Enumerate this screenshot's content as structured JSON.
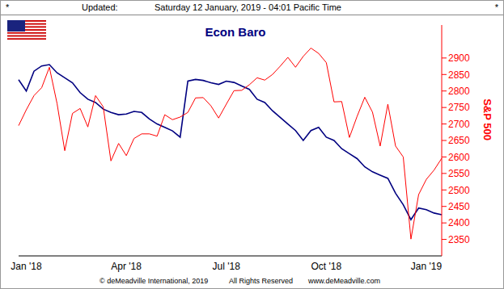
{
  "chart_data": {
    "type": "line",
    "title": "Econ Baro",
    "header": [
      "*",
      "Updated:",
      "Saturday 12 January, 2019 - 04:01 Pacific Time",
      "*"
    ],
    "footer": [
      "© deMeadville International, 2019",
      "All Rights Reserved",
      "www.deMeadville.com"
    ],
    "y_label": "S&P 500",
    "categories": [
      null,
      "Jan '18",
      null,
      null,
      null,
      null,
      null,
      null,
      null,
      null,
      null,
      null,
      null,
      null,
      "Apr '18",
      null,
      null,
      null,
      null,
      null,
      null,
      null,
      null,
      null,
      null,
      null,
      null,
      "Jul '18",
      null,
      null,
      null,
      null,
      null,
      null,
      null,
      null,
      null,
      null,
      null,
      null,
      "Oct '18",
      null,
      null,
      null,
      null,
      null,
      null,
      null,
      null,
      null,
      null,
      null,
      null,
      "Jan '19",
      null,
      null
    ],
    "series": [
      {
        "name": "Econ Baro",
        "color": "#000080",
        "values": [
          2834,
          2800,
          2860,
          2876,
          2880,
          2855,
          2840,
          2825,
          2795,
          2775,
          2765,
          2745,
          2735,
          2728,
          2730,
          2738,
          2735,
          2715,
          2700,
          2690,
          2679,
          2660,
          2830,
          2835,
          2832,
          2825,
          2820,
          2830,
          2826,
          2815,
          2805,
          2775,
          2765,
          2740,
          2720,
          2700,
          2680,
          2650,
          2680,
          2690,
          2660,
          2650,
          2625,
          2610,
          2595,
          2570,
          2555,
          2545,
          2535,
          2490,
          2455,
          2410,
          2445,
          2440,
          2430,
          2425
        ]
      },
      {
        "name": "S&P 500",
        "color": "#ff0000",
        "values": [
          2695,
          2743,
          2786,
          2810,
          2872,
          2762,
          2619,
          2732,
          2747,
          2691,
          2786,
          2752,
          2588,
          2641,
          2604,
          2656,
          2670,
          2670,
          2663,
          2728,
          2713,
          2721,
          2735,
          2779,
          2780,
          2755,
          2718,
          2760,
          2801,
          2802,
          2819,
          2840,
          2833,
          2850,
          2875,
          2902,
          2872,
          2905,
          2930,
          2914,
          2886,
          2767,
          2768,
          2659,
          2723,
          2781,
          2736,
          2633,
          2760,
          2633,
          2600,
          2351,
          2486,
          2532,
          2560,
          2596
        ]
      }
    ],
    "ylim": [
      2300,
      3000
    ],
    "yticks": [
      2350,
      2400,
      2450,
      2500,
      2550,
      2600,
      2650,
      2700,
      2750,
      2800,
      2850,
      2900
    ],
    "grid": false
  }
}
